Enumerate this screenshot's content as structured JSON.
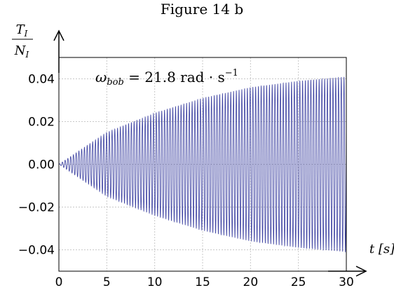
{
  "figure_title": "Figure 14 b",
  "chart_data": {
    "type": "line",
    "title": "",
    "ylabel_numerator": "T",
    "ylabel_numerator_sub": "I",
    "ylabel_denominator": "N",
    "ylabel_denominator_sub": "I",
    "xlabel": "t [s]",
    "annotation": {
      "symbol": "ω",
      "subscript": "bob",
      "text": " = 21.8 rad · s",
      "superscript": "−1"
    },
    "xlim": [
      0,
      30
    ],
    "ylim": [
      -0.05,
      0.05
    ],
    "x_ticks": [
      0,
      5,
      10,
      15,
      20,
      25,
      30
    ],
    "x_tick_labels": [
      "0",
      "5",
      "10",
      "15",
      "20",
      "25",
      "30"
    ],
    "y_ticks": [
      -0.04,
      -0.02,
      0.0,
      0.02,
      0.04
    ],
    "y_tick_labels": [
      "−0.04",
      "−0.02",
      "0.00",
      "0.02",
      "0.04"
    ],
    "grid": true,
    "series": [
      {
        "color": "#3a3fa0",
        "omega": 21.8,
        "envelope": {
          "t": [
            0,
            5,
            10,
            15,
            20,
            25,
            30
          ],
          "amplitude": [
            0,
            0.015,
            0.024,
            0.031,
            0.036,
            0.039,
            0.041
          ]
        }
      }
    ]
  }
}
